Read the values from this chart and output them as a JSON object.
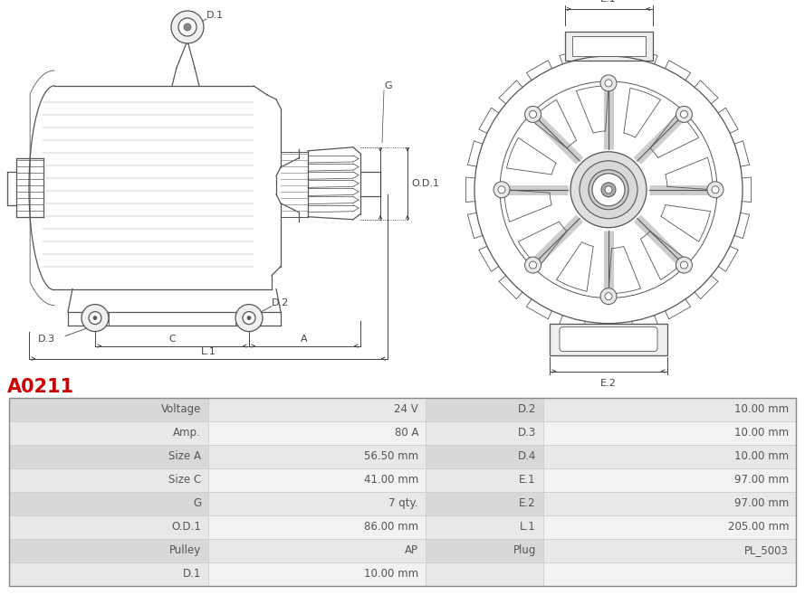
{
  "title": "A0211",
  "title_color": "#cc0000",
  "background_color": "#ffffff",
  "table_data": {
    "left_col1": [
      "Voltage",
      "Amp.",
      "Size A",
      "Size C",
      "G",
      "O.D.1",
      "Pulley",
      "D.1"
    ],
    "left_col2": [
      "24 V",
      "80 A",
      "56.50 mm",
      "41.00 mm",
      "7 qty.",
      "86.00 mm",
      "AP",
      "10.00 mm"
    ],
    "right_col1": [
      "D.2",
      "D.3",
      "D.4",
      "E.1",
      "E.2",
      "L.1",
      "Plug",
      ""
    ],
    "right_col2": [
      "10.00 mm",
      "10.00 mm",
      "10.00 mm",
      "97.00 mm",
      "97.00 mm",
      "205.00 mm",
      "PL_5003",
      ""
    ]
  },
  "row_colors_odd": "#e8e8e8",
  "row_colors_even": "#f2f2f2",
  "label_col_color_odd": "#d8d8d8",
  "label_col_color_even": "#e8e8e8",
  "border_color": "#cccccc",
  "text_color": "#555555",
  "line_color": "#555555",
  "ann_color": "#444444",
  "fig_w": 8.89,
  "fig_h": 6.58,
  "dpi": 100
}
